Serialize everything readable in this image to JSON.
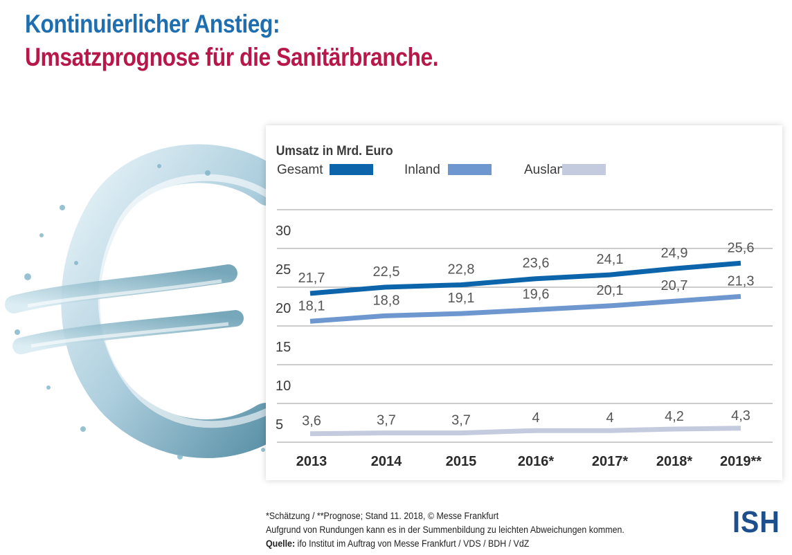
{
  "title_line1": "Kontinuierlicher Anstieg:",
  "title_line2": "Umsatzprognose für die Sanitärbranche.",
  "colors": {
    "title1": "#1f6fb0",
    "title2": "#b8174a",
    "gesamt": "#0c64aa",
    "inland": "#6f97cf",
    "ausland": "#c5cbde",
    "logo": "#1c4f8c"
  },
  "chart_data": {
    "type": "line",
    "ylabel": "Umsatz in Mrd. Euro",
    "categories": [
      "2013",
      "2014",
      "2015",
      "2016*",
      "2017*",
      "2018*",
      "2019**"
    ],
    "y_ticks": [
      "5",
      "10",
      "15",
      "20",
      "25",
      "30"
    ],
    "ylim": [
      5,
      30
    ],
    "grid": true,
    "legend_position": "top-left",
    "series": [
      {
        "name": "Gesamt",
        "values": [
          21.7,
          22.5,
          22.8,
          23.6,
          24.1,
          24.9,
          25.6
        ],
        "labels": [
          "21,7",
          "22,5",
          "22,8",
          "23,6",
          "24,1",
          "24,9",
          "25,6"
        ]
      },
      {
        "name": "Inland",
        "values": [
          18.1,
          18.8,
          19.1,
          19.6,
          20.1,
          20.7,
          21.3
        ],
        "labels": [
          "18,1",
          "18,8",
          "19,1",
          "19,6",
          "20,1",
          "20,7",
          "21,3"
        ]
      },
      {
        "name": "Ausland",
        "values": [
          3.6,
          3.7,
          3.7,
          4,
          4,
          4.2,
          4.3
        ],
        "labels": [
          "3,6",
          "3,7",
          "3,7",
          "4",
          "4",
          "4,2",
          "4,3"
        ]
      }
    ]
  },
  "footnote": {
    "line1": "*Schätzung / **Prognose; Stand 11. 2018, © Messe Frankfurt",
    "line2": "Aufgrund von Rundungen kann es in der Summenbildung zu leichten Abweichungen kommen.",
    "source_label": "Quelle:",
    "source_text": " ifo Institut im Auftrag von Messe Frankfurt / VDS / BDH / VdZ"
  },
  "logo_text": "ISH",
  "decoration": "euro-water-splash-icon"
}
